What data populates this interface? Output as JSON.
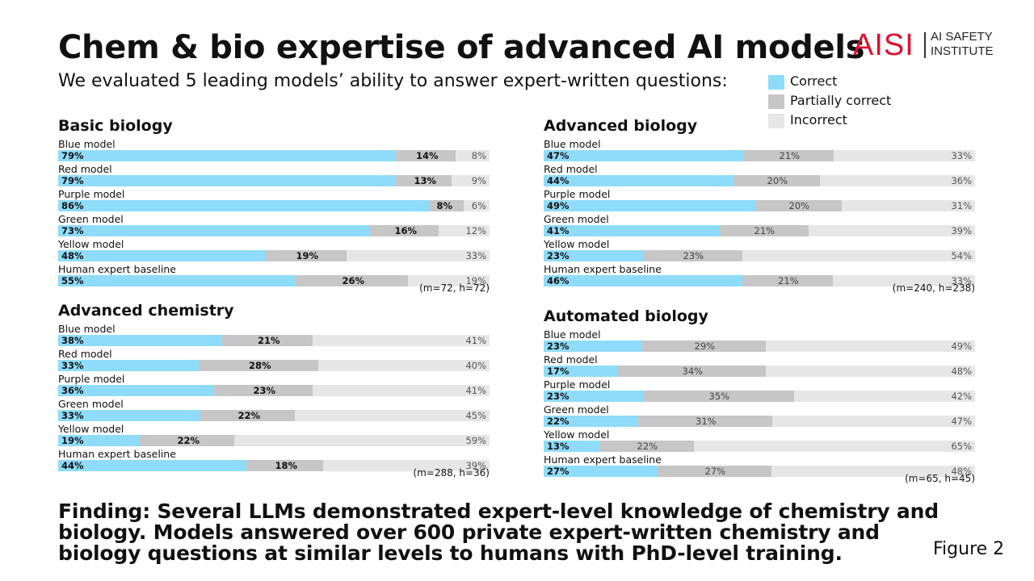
{
  "header": {
    "title": "Chem & bio expertise of advanced AI models",
    "subtitle": "We evaluated 5 leading models’ ability to answer expert-written questions:"
  },
  "logo": {
    "mark": "AISI",
    "text": "AI SAFETY\nINSTITUTE"
  },
  "legend": [
    {
      "label": "Correct",
      "color": "#8fdcfa"
    },
    {
      "label": "Partially correct",
      "color": "#c6c6c6"
    },
    {
      "label": "Incorrect",
      "color": "#e6e6e6"
    }
  ],
  "chart_data": [
    {
      "type": "bar",
      "stacked": true,
      "orientation": "horizontal",
      "title": "Basic biology",
      "categories": [
        "Blue model",
        "Red model",
        "Purple model",
        "Green model",
        "Yellow model",
        "Human expert baseline"
      ],
      "series": [
        {
          "name": "Correct",
          "values": [
            79,
            79,
            86,
            73,
            48,
            55
          ]
        },
        {
          "name": "Partially correct",
          "values": [
            14,
            13,
            8,
            16,
            19,
            26
          ]
        },
        {
          "name": "Incorrect",
          "values": [
            8,
            9,
            6,
            12,
            33,
            19
          ]
        }
      ],
      "note": "(m=72, h=72)"
    },
    {
      "type": "bar",
      "stacked": true,
      "orientation": "horizontal",
      "title": "Advanced biology",
      "categories": [
        "Blue model",
        "Red model",
        "Purple model",
        "Green model",
        "Yellow model",
        "Human expert baseline"
      ],
      "series": [
        {
          "name": "Correct",
          "values": [
            47,
            44,
            49,
            41,
            23,
            46
          ]
        },
        {
          "name": "Partially correct",
          "values": [
            21,
            20,
            20,
            21,
            23,
            21
          ]
        },
        {
          "name": "Incorrect",
          "values": [
            33,
            36,
            31,
            39,
            54,
            33
          ]
        }
      ],
      "note": "(m=240, h=238)"
    },
    {
      "type": "bar",
      "stacked": true,
      "orientation": "horizontal",
      "title": "Advanced chemistry",
      "categories": [
        "Blue model",
        "Red model",
        "Purple model",
        "Green model",
        "Yellow model",
        "Human expert baseline"
      ],
      "series": [
        {
          "name": "Correct",
          "values": [
            38,
            33,
            36,
            33,
            19,
            44
          ]
        },
        {
          "name": "Partially correct",
          "values": [
            21,
            28,
            23,
            22,
            22,
            18
          ]
        },
        {
          "name": "Incorrect",
          "values": [
            41,
            40,
            41,
            45,
            59,
            39
          ]
        }
      ],
      "note": "(m=288, h=36)"
    },
    {
      "type": "bar",
      "stacked": true,
      "orientation": "horizontal",
      "title": "Automated biology",
      "categories": [
        "Blue model",
        "Red model",
        "Purple model",
        "Green model",
        "Yellow model",
        "Human expert baseline"
      ],
      "series": [
        {
          "name": "Correct",
          "values": [
            23,
            17,
            23,
            22,
            13,
            27
          ]
        },
        {
          "name": "Partially correct",
          "values": [
            29,
            34,
            35,
            31,
            22,
            27
          ]
        },
        {
          "name": "Incorrect",
          "values": [
            49,
            48,
            42,
            47,
            65,
            48
          ]
        }
      ],
      "note": "(m=65, h=45)"
    }
  ],
  "finding": "Finding: Several LLMs demonstrated expert-level knowledge of chemistry and biology. Models answered over 600 private expert-written chemistry and biology questions at similar levels to humans with PhD-level training.",
  "figure_label": "Figure 2"
}
